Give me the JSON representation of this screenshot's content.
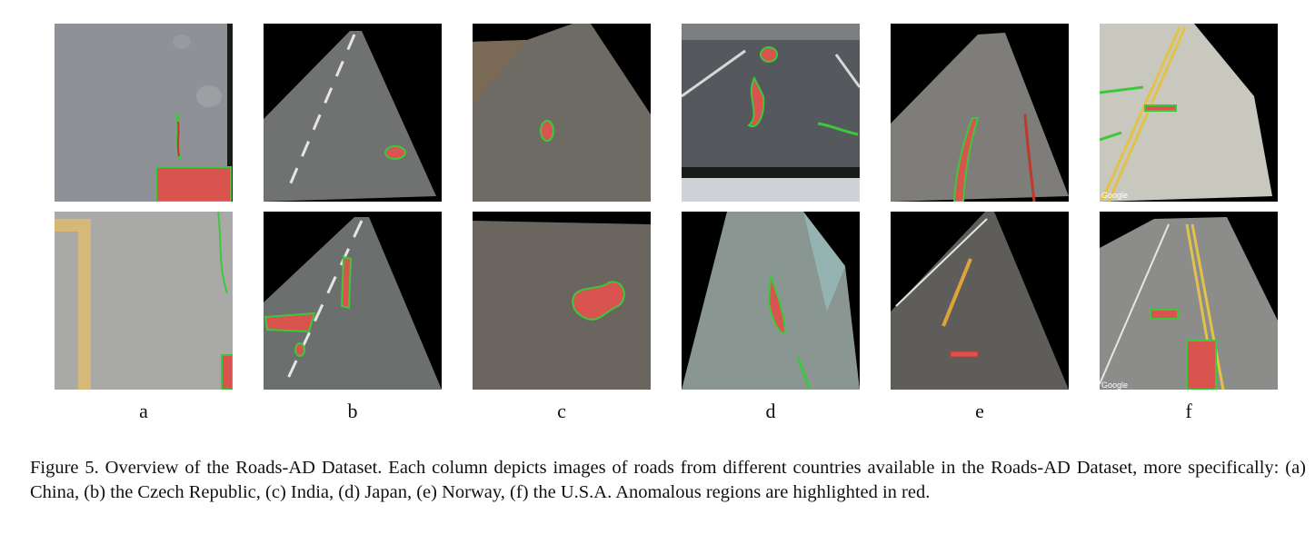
{
  "figure": {
    "columns": [
      {
        "label": "a"
      },
      {
        "label": "b"
      },
      {
        "label": "c"
      },
      {
        "label": "d"
      },
      {
        "label": "e"
      },
      {
        "label": "f"
      }
    ],
    "watermarks": {
      "google": "Google"
    },
    "caption": "Figure 5. Overview of the Roads-AD Dataset. Each column depicts images of roads from different countries available in the Roads-AD Dataset, more specifically: (a) China, (b) the Czech Republic, (c) India, (d) Japan, (e) Norway, (f) the U.S.A. Anomalous regions are highlighted in red."
  },
  "colors": {
    "anomaly_fill": "#d9534f",
    "anomaly_outline": "#3cc83c",
    "background": "#000000"
  }
}
